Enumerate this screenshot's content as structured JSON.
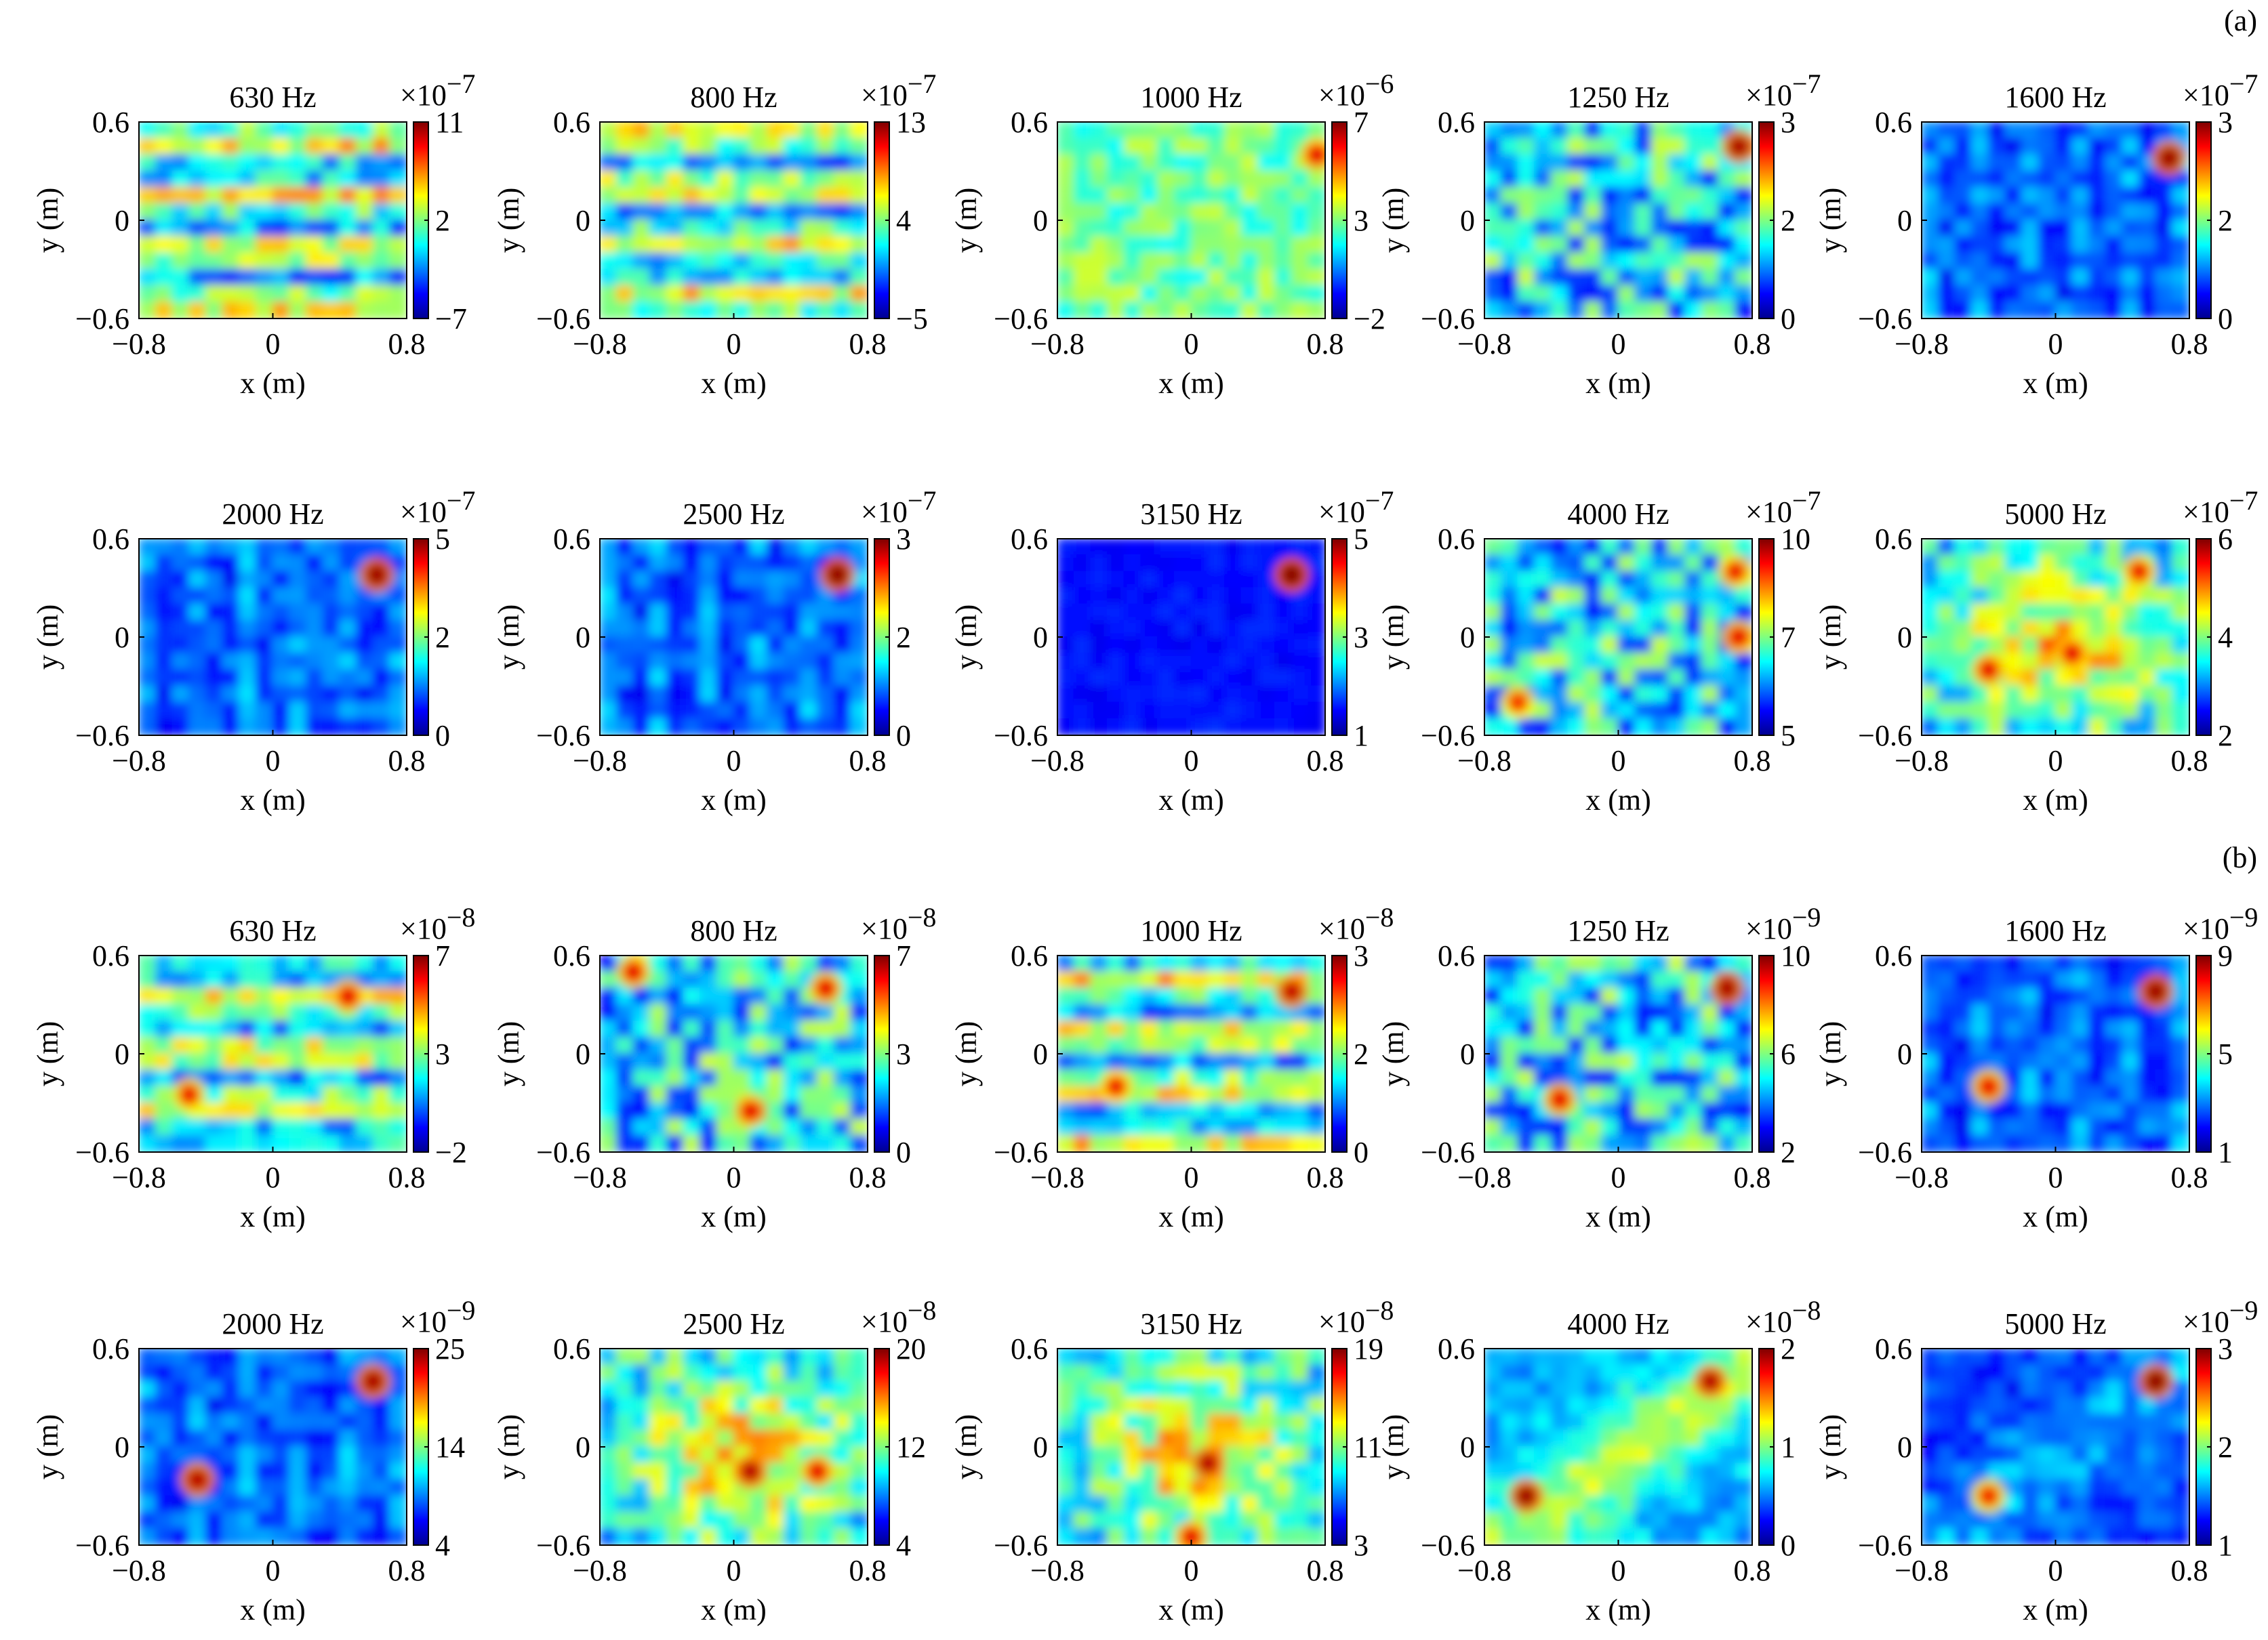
{
  "figure": {
    "section_labels": [
      "(a)",
      "(b)"
    ],
    "colorscale": "jet"
  },
  "chart_data": [
    {
      "type": "heatmap",
      "section": "(a)",
      "title": "630 Hz",
      "xlabel": "x (m)",
      "ylabel": "y (m)",
      "xticks": [
        "−0.8",
        "0",
        "0.8"
      ],
      "yticks": [
        "0.6",
        "0",
        "−0.6"
      ],
      "xlim": [
        -0.8,
        0.8
      ],
      "ylim": [
        -0.6,
        0.6
      ],
      "colorbar": {
        "exponent": "−7",
        "ticks": [
          "11",
          "2",
          "−7"
        ],
        "range": [
          -7,
          11
        ]
      },
      "pattern": "bands",
      "hotspots": []
    },
    {
      "type": "heatmap",
      "section": "(a)",
      "title": "800 Hz",
      "xlabel": "x (m)",
      "ylabel": "y (m)",
      "xticks": [
        "−0.8",
        "0",
        "0.8"
      ],
      "yticks": [
        "0.6",
        "0",
        "−0.6"
      ],
      "xlim": [
        -0.8,
        0.8
      ],
      "ylim": [
        -0.6,
        0.6
      ],
      "colorbar": {
        "exponent": "−7",
        "ticks": [
          "13",
          "4",
          "−5"
        ],
        "range": [
          -5,
          13
        ]
      },
      "pattern": "bands",
      "hotspots": []
    },
    {
      "type": "heatmap",
      "section": "(a)",
      "title": "1000 Hz",
      "xlabel": "x (m)",
      "ylabel": "y (m)",
      "xticks": [
        "−0.8",
        "0",
        "0.8"
      ],
      "yticks": [
        "0.6",
        "0",
        "−0.6"
      ],
      "xlim": [
        -0.8,
        0.8
      ],
      "ylim": [
        -0.6,
        0.6
      ],
      "colorbar": {
        "exponent": "−6",
        "ticks": [
          "7",
          "3",
          "−2"
        ],
        "range": [
          -2,
          7
        ]
      },
      "pattern": "uniform",
      "hotspots": [
        [
          0.75,
          0.4,
          0.5
        ]
      ]
    },
    {
      "type": "heatmap",
      "section": "(a)",
      "title": "1250 Hz",
      "xlabel": "x (m)",
      "ylabel": "y (m)",
      "xticks": [
        "−0.8",
        "0",
        "0.8"
      ],
      "yticks": [
        "0.6",
        "0",
        "−0.6"
      ],
      "xlim": [
        -0.8,
        0.8
      ],
      "ylim": [
        -0.6,
        0.6
      ],
      "colorbar": {
        "exponent": "−7",
        "ticks": [
          "3",
          "2",
          "0"
        ],
        "range": [
          0,
          3
        ]
      },
      "pattern": "mottled",
      "hotspots": [
        [
          0.72,
          0.45,
          0.8
        ]
      ]
    },
    {
      "type": "heatmap",
      "section": "(a)",
      "title": "1600 Hz",
      "xlabel": "x (m)",
      "ylabel": "y (m)",
      "xticks": [
        "−0.8",
        "0",
        "0.8"
      ],
      "yticks": [
        "0.6",
        "0",
        "−0.6"
      ],
      "xlim": [
        -0.8,
        0.8
      ],
      "ylim": [
        -0.6,
        0.6
      ],
      "colorbar": {
        "exponent": "−7",
        "ticks": [
          "3",
          "2",
          "0"
        ],
        "range": [
          0,
          3
        ]
      },
      "pattern": "low",
      "hotspots": [
        [
          0.68,
          0.38,
          0.85
        ]
      ]
    },
    {
      "type": "heatmap",
      "section": "(a)",
      "title": "2000 Hz",
      "xlabel": "x (m)",
      "ylabel": "y (m)",
      "xticks": [
        "−0.8",
        "0",
        "0.8"
      ],
      "yticks": [
        "0.6",
        "0",
        "−0.6"
      ],
      "xlim": [
        -0.8,
        0.8
      ],
      "ylim": [
        -0.6,
        0.6
      ],
      "colorbar": {
        "exponent": "−7",
        "ticks": [
          "5",
          "2",
          "0"
        ],
        "range": [
          0,
          5
        ]
      },
      "pattern": "low",
      "hotspots": [
        [
          0.62,
          0.38,
          0.85
        ]
      ]
    },
    {
      "type": "heatmap",
      "section": "(a)",
      "title": "2500 Hz",
      "xlabel": "x (m)",
      "ylabel": "y (m)",
      "xticks": [
        "−0.8",
        "0",
        "0.8"
      ],
      "yticks": [
        "0.6",
        "0",
        "−0.6"
      ],
      "xlim": [
        -0.8,
        0.8
      ],
      "ylim": [
        -0.6,
        0.6
      ],
      "colorbar": {
        "exponent": "−7",
        "ticks": [
          "3",
          "2",
          "0"
        ],
        "range": [
          0,
          3
        ]
      },
      "pattern": "low",
      "hotspots": [
        [
          0.62,
          0.38,
          0.9
        ]
      ]
    },
    {
      "type": "heatmap",
      "section": "(a)",
      "title": "3150 Hz",
      "xlabel": "x (m)",
      "ylabel": "y (m)",
      "xticks": [
        "−0.8",
        "0",
        "0.8"
      ],
      "yticks": [
        "0.6",
        "0",
        "−0.6"
      ],
      "xlim": [
        -0.8,
        0.8
      ],
      "ylim": [
        -0.6,
        0.6
      ],
      "colorbar": {
        "exponent": "−7",
        "ticks": [
          "5",
          "3",
          "1"
        ],
        "range": [
          1,
          5
        ]
      },
      "pattern": "flat",
      "hotspots": [
        [
          0.6,
          0.38,
          0.95
        ]
      ]
    },
    {
      "type": "heatmap",
      "section": "(a)",
      "title": "4000 Hz",
      "xlabel": "x (m)",
      "ylabel": "y (m)",
      "xticks": [
        "−0.8",
        "0",
        "0.8"
      ],
      "yticks": [
        "0.6",
        "0",
        "−0.6"
      ],
      "xlim": [
        -0.8,
        0.8
      ],
      "ylim": [
        -0.6,
        0.6
      ],
      "colorbar": {
        "exponent": "−7",
        "ticks": [
          "10",
          "7",
          "5"
        ],
        "range": [
          5,
          10
        ]
      },
      "pattern": "mottled",
      "hotspots": [
        [
          0.72,
          0.0,
          0.5
        ],
        [
          -0.6,
          -0.4,
          0.3
        ],
        [
          0.7,
          0.4,
          0.4
        ]
      ]
    },
    {
      "type": "heatmap",
      "section": "(a)",
      "title": "5000 Hz",
      "xlabel": "x (m)",
      "ylabel": "y (m)",
      "xticks": [
        "−0.8",
        "0",
        "0.8"
      ],
      "yticks": [
        "0.6",
        "0",
        "−0.6"
      ],
      "xlim": [
        -0.8,
        0.8
      ],
      "ylim": [
        -0.6,
        0.6
      ],
      "colorbar": {
        "exponent": "−7",
        "ticks": [
          "6",
          "4",
          "2"
        ],
        "range": [
          2,
          6
        ]
      },
      "pattern": "central",
      "hotspots": [
        [
          -0.4,
          -0.2,
          0.5
        ],
        [
          0.1,
          -0.1,
          0.5
        ],
        [
          0.5,
          0.4,
          0.4
        ]
      ]
    },
    {
      "type": "heatmap",
      "section": "(b)",
      "title": "630 Hz",
      "xlabel": "x (m)",
      "ylabel": "y (m)",
      "xticks": [
        "−0.8",
        "0",
        "0.8"
      ],
      "yticks": [
        "0.6",
        "0",
        "−0.6"
      ],
      "xlim": [
        -0.8,
        0.8
      ],
      "ylim": [
        -0.6,
        0.6
      ],
      "colorbar": {
        "exponent": "−8",
        "ticks": [
          "7",
          "3",
          "−2"
        ],
        "range": [
          -2,
          7
        ]
      },
      "pattern": "bands",
      "hotspots": [
        [
          0.45,
          0.35,
          0.5
        ],
        [
          -0.5,
          -0.25,
          0.4
        ]
      ]
    },
    {
      "type": "heatmap",
      "section": "(b)",
      "title": "800 Hz",
      "xlabel": "x (m)",
      "ylabel": "y (m)",
      "xticks": [
        "−0.8",
        "0",
        "0.8"
      ],
      "yticks": [
        "0.6",
        "0",
        "−0.6"
      ],
      "xlim": [
        -0.8,
        0.8
      ],
      "ylim": [
        -0.6,
        0.6
      ],
      "colorbar": {
        "exponent": "−8",
        "ticks": [
          "7",
          "3",
          "0"
        ],
        "range": [
          0,
          7
        ]
      },
      "pattern": "mottled",
      "hotspots": [
        [
          -0.6,
          0.5,
          0.5
        ],
        [
          0.55,
          0.4,
          0.5
        ],
        [
          0.1,
          -0.35,
          0.5
        ]
      ]
    },
    {
      "type": "heatmap",
      "section": "(b)",
      "title": "1000 Hz",
      "xlabel": "x (m)",
      "ylabel": "y (m)",
      "xticks": [
        "−0.8",
        "0",
        "0.8"
      ],
      "yticks": [
        "0.6",
        "0",
        "−0.6"
      ],
      "xlim": [
        -0.8,
        0.8
      ],
      "ylim": [
        -0.6,
        0.6
      ],
      "colorbar": {
        "exponent": "−8",
        "ticks": [
          "3",
          "2",
          "0"
        ],
        "range": [
          0,
          3
        ]
      },
      "pattern": "bands",
      "hotspots": [
        [
          0.6,
          0.38,
          0.7
        ],
        [
          -0.45,
          -0.2,
          0.4
        ]
      ]
    },
    {
      "type": "heatmap",
      "section": "(b)",
      "title": "1250 Hz",
      "xlabel": "x (m)",
      "ylabel": "y (m)",
      "xticks": [
        "−0.8",
        "0",
        "0.8"
      ],
      "yticks": [
        "0.6",
        "0",
        "−0.6"
      ],
      "xlim": [
        -0.8,
        0.8
      ],
      "ylim": [
        -0.6,
        0.6
      ],
      "colorbar": {
        "exponent": "−9",
        "ticks": [
          "10",
          "6",
          "2"
        ],
        "range": [
          2,
          10
        ]
      },
      "pattern": "mottled",
      "hotspots": [
        [
          0.65,
          0.4,
          0.8
        ],
        [
          -0.35,
          -0.28,
          0.5
        ]
      ]
    },
    {
      "type": "heatmap",
      "section": "(b)",
      "title": "1600 Hz",
      "xlabel": "x (m)",
      "ylabel": "y (m)",
      "xticks": [
        "−0.8",
        "0",
        "0.8"
      ],
      "yticks": [
        "0.6",
        "0",
        "−0.6"
      ],
      "xlim": [
        -0.8,
        0.8
      ],
      "ylim": [
        -0.6,
        0.6
      ],
      "colorbar": {
        "exponent": "−9",
        "ticks": [
          "9",
          "5",
          "1"
        ],
        "range": [
          1,
          9
        ]
      },
      "pattern": "low",
      "hotspots": [
        [
          0.6,
          0.38,
          0.85
        ],
        [
          -0.4,
          -0.2,
          0.45
        ]
      ]
    },
    {
      "type": "heatmap",
      "section": "(b)",
      "title": "2000 Hz",
      "xlabel": "x (m)",
      "ylabel": "y (m)",
      "xticks": [
        "−0.8",
        "0",
        "0.8"
      ],
      "yticks": [
        "0.6",
        "0",
        "−0.6"
      ],
      "xlim": [
        -0.8,
        0.8
      ],
      "ylim": [
        -0.6,
        0.6
      ],
      "colorbar": {
        "exponent": "−9",
        "ticks": [
          "25",
          "14",
          "4"
        ],
        "range": [
          4,
          25
        ]
      },
      "pattern": "low",
      "hotspots": [
        [
          0.6,
          0.4,
          0.8
        ],
        [
          -0.45,
          -0.2,
          0.75
        ]
      ]
    },
    {
      "type": "heatmap",
      "section": "(b)",
      "title": "2500 Hz",
      "xlabel": "x (m)",
      "ylabel": "y (m)",
      "xticks": [
        "−0.8",
        "0",
        "0.8"
      ],
      "yticks": [
        "0.6",
        "0",
        "−0.6"
      ],
      "xlim": [
        -0.8,
        0.8
      ],
      "ylim": [
        -0.6,
        0.6
      ],
      "colorbar": {
        "exponent": "−8",
        "ticks": [
          "20",
          "12",
          "4"
        ],
        "range": [
          4,
          20
        ]
      },
      "pattern": "central",
      "hotspots": [
        [
          0.1,
          -0.15,
          0.75
        ],
        [
          0.5,
          -0.15,
          0.5
        ]
      ]
    },
    {
      "type": "heatmap",
      "section": "(b)",
      "title": "3150 Hz",
      "xlabel": "x (m)",
      "ylabel": "y (m)",
      "xticks": [
        "−0.8",
        "0",
        "0.8"
      ],
      "yticks": [
        "0.6",
        "0",
        "−0.6"
      ],
      "xlim": [
        -0.8,
        0.8
      ],
      "ylim": [
        -0.6,
        0.6
      ],
      "colorbar": {
        "exponent": "−8",
        "ticks": [
          "19",
          "11",
          "3"
        ],
        "range": [
          3,
          19
        ]
      },
      "pattern": "central",
      "hotspots": [
        [
          0.1,
          -0.1,
          0.75
        ],
        [
          0.0,
          -0.55,
          0.5
        ]
      ]
    },
    {
      "type": "heatmap",
      "section": "(b)",
      "title": "4000 Hz",
      "xlabel": "x (m)",
      "ylabel": "y (m)",
      "xticks": [
        "−0.8",
        "0",
        "0.8"
      ],
      "yticks": [
        "0.6",
        "0",
        "−0.6"
      ],
      "xlim": [
        -0.8,
        0.8
      ],
      "ylim": [
        -0.6,
        0.6
      ],
      "colorbar": {
        "exponent": "−8",
        "ticks": [
          "2",
          "1",
          "0"
        ],
        "range": [
          0,
          2
        ]
      },
      "pattern": "diagonal",
      "hotspots": [
        [
          -0.55,
          -0.3,
          0.85
        ],
        [
          0.55,
          0.4,
          0.75
        ]
      ]
    },
    {
      "type": "heatmap",
      "section": "(b)",
      "title": "5000 Hz",
      "xlabel": "x (m)",
      "ylabel": "y (m)",
      "xticks": [
        "−0.8",
        "0",
        "0.8"
      ],
      "yticks": [
        "0.6",
        "0",
        "−0.6"
      ],
      "xlim": [
        -0.8,
        0.8
      ],
      "ylim": [
        -0.6,
        0.6
      ],
      "colorbar": {
        "exponent": "−9",
        "ticks": [
          "3",
          "2",
          "1"
        ],
        "range": [
          1,
          3
        ]
      },
      "pattern": "diagonal_faint",
      "hotspots": [
        [
          0.6,
          0.4,
          0.9
        ],
        [
          -0.4,
          -0.3,
          0.35
        ]
      ]
    }
  ]
}
